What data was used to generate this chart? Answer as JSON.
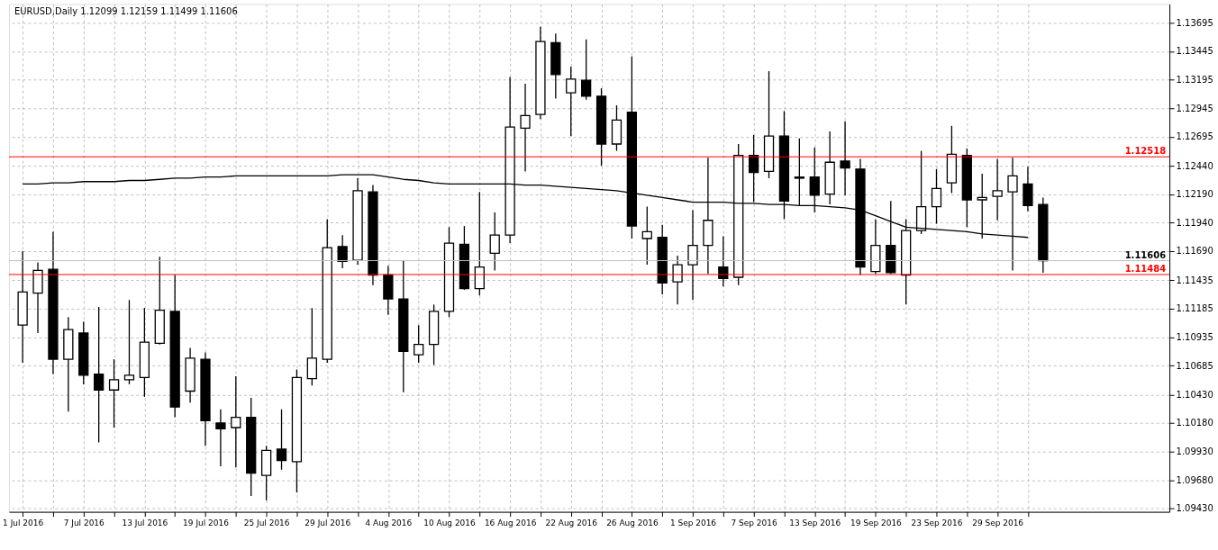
{
  "chart_data": {
    "type": "candlestick",
    "title": "EURUSD,Daily  1.12099 1.12159 1.11499 1.11606",
    "categories": [
      "1 Jul 2016",
      null,
      null,
      null,
      "7 Jul 2016",
      null,
      null,
      null,
      "13 Jul 2016",
      null,
      null,
      null,
      "19 Jul 2016",
      null,
      null,
      null,
      "25 Jul 2016",
      null,
      null,
      null,
      "29 Jul 2016",
      null,
      null,
      null,
      "4 Aug 2016",
      null,
      null,
      null,
      "10 Aug 2016",
      null,
      null,
      null,
      "16 Aug 2016",
      null,
      null,
      null,
      "22 Aug 2016",
      null,
      null,
      null,
      "26 Aug 2016",
      null,
      null,
      null,
      "1 Sep 2016",
      null,
      null,
      null,
      "7 Sep 2016",
      null,
      null,
      null,
      "13 Sep 2016",
      null,
      null,
      null,
      "19 Sep 2016",
      null,
      null,
      null,
      "23 Sep 2016",
      null,
      null,
      null,
      "29 Sep 2016",
      null,
      null,
      null
    ],
    "ohlc": [
      [
        1.1104,
        1.1169,
        1.1071,
        1.1133
      ],
      [
        1.1132,
        1.1159,
        1.1097,
        1.1152
      ],
      [
        1.1153,
        1.1186,
        1.1061,
        1.1074
      ],
      [
        1.1074,
        1.1111,
        1.1028,
        1.11
      ],
      [
        1.1097,
        1.1107,
        1.1052,
        1.106
      ],
      [
        1.1061,
        1.112,
        1.1001,
        1.1047
      ],
      [
        1.1047,
        1.1074,
        1.1014,
        1.1056
      ],
      [
        1.1056,
        1.1126,
        1.1052,
        1.106
      ],
      [
        1.1058,
        1.1119,
        1.1041,
        1.1089
      ],
      [
        1.1088,
        1.1164,
        1.1087,
        1.1117
      ],
      [
        1.1116,
        1.1148,
        1.1023,
        1.1032
      ],
      [
        1.1046,
        1.1084,
        1.1036,
        1.1075
      ],
      [
        1.1074,
        1.108,
        1.0998,
        1.102
      ],
      [
        1.1018,
        1.103,
        1.098,
        1.1013
      ],
      [
        1.1014,
        1.1059,
        1.0979,
        1.1023
      ],
      [
        1.1023,
        1.104,
        1.0954,
        1.0974
      ],
      [
        1.0972,
        1.0998,
        1.095,
        1.0994
      ],
      [
        1.0995,
        1.103,
        1.0977,
        1.0985
      ],
      [
        1.0984,
        1.1065,
        1.0957,
        1.1058
      ],
      [
        1.1057,
        1.1119,
        1.1051,
        1.1075
      ],
      [
        1.1074,
        1.1197,
        1.1071,
        1.1172
      ],
      [
        1.1173,
        1.1183,
        1.1154,
        1.116
      ],
      [
        1.1161,
        1.1233,
        1.1157,
        1.1222
      ],
      [
        1.1221,
        1.1227,
        1.1139,
        1.1148
      ],
      [
        1.1148,
        1.1156,
        1.1113,
        1.1127
      ],
      [
        1.1127,
        1.1161,
        1.1045,
        1.1081
      ],
      [
        1.1078,
        1.1104,
        1.1071,
        1.1087
      ],
      [
        1.1087,
        1.1122,
        1.1069,
        1.1116
      ],
      [
        1.1116,
        1.119,
        1.1111,
        1.1176
      ],
      [
        1.1175,
        1.1191,
        1.1135,
        1.1136
      ],
      [
        1.1136,
        1.1221,
        1.113,
        1.1155
      ],
      [
        1.1167,
        1.1203,
        1.1152,
        1.1183
      ],
      [
        1.1183,
        1.1322,
        1.1176,
        1.1278
      ],
      [
        1.1277,
        1.1316,
        1.1239,
        1.1288
      ],
      [
        1.1289,
        1.1366,
        1.1285,
        1.1353
      ],
      [
        1.1352,
        1.136,
        1.1303,
        1.1324
      ],
      [
        1.1308,
        1.1331,
        1.127,
        1.132
      ],
      [
        1.1319,
        1.1355,
        1.1302,
        1.1305
      ],
      [
        1.1305,
        1.1312,
        1.1244,
        1.1263
      ],
      [
        1.1263,
        1.1297,
        1.1257,
        1.1284
      ],
      [
        1.1291,
        1.134,
        1.118,
        1.1191
      ],
      [
        1.118,
        1.1208,
        1.1157,
        1.1186
      ],
      [
        1.1181,
        1.1192,
        1.1131,
        1.1141
      ],
      [
        1.1142,
        1.1165,
        1.1122,
        1.1157
      ],
      [
        1.1157,
        1.1205,
        1.1126,
        1.1174
      ],
      [
        1.1174,
        1.1251,
        1.1149,
        1.1196
      ],
      [
        1.1155,
        1.1182,
        1.1138,
        1.1145
      ],
      [
        1.1146,
        1.1263,
        1.1139,
        1.1253
      ],
      [
        1.1253,
        1.1271,
        1.1212,
        1.1238
      ],
      [
        1.1239,
        1.1327,
        1.1233,
        1.127
      ],
      [
        1.127,
        1.1292,
        1.1197,
        1.1213
      ],
      [
        1.1233,
        1.1268,
        1.1209,
        1.1234
      ],
      [
        1.1234,
        1.126,
        1.1203,
        1.1218
      ],
      [
        1.1219,
        1.1274,
        1.121,
        1.1247
      ],
      [
        1.1248,
        1.1283,
        1.1218,
        1.1242
      ],
      [
        1.1241,
        1.125,
        1.1148,
        1.1155
      ],
      [
        1.1151,
        1.1197,
        1.1149,
        1.1174
      ],
      [
        1.1174,
        1.1213,
        1.1149,
        1.115
      ],
      [
        1.1148,
        1.1197,
        1.1122,
        1.1187
      ],
      [
        1.1187,
        1.1257,
        1.1184,
        1.1208
      ],
      [
        1.1208,
        1.1241,
        1.1193,
        1.1224
      ],
      [
        1.1229,
        1.1279,
        1.122,
        1.1254
      ],
      [
        1.1253,
        1.1259,
        1.119,
        1.1214
      ],
      [
        1.1214,
        1.1237,
        1.118,
        1.1216
      ],
      [
        1.1217,
        1.125,
        1.1196,
        1.1222
      ],
      [
        1.1221,
        1.1251,
        1.1152,
        1.1235
      ],
      [
        1.1228,
        1.1243,
        1.1204,
        1.1209
      ],
      [
        1.12099,
        1.12159,
        1.11499,
        1.11606
      ]
    ],
    "series": [
      {
        "type": "line",
        "color": "#000000",
        "values": [
          1.1228,
          1.1228,
          1.1229,
          1.1229,
          1.123,
          1.123,
          1.123,
          1.1231,
          1.1231,
          1.1232,
          1.1233,
          1.1233,
          1.1234,
          1.1234,
          1.1235,
          1.1235,
          1.1235,
          1.1235,
          1.1235,
          1.1235,
          1.1235,
          1.1236,
          1.1236,
          1.1236,
          1.1234,
          1.1232,
          1.1231,
          1.1229,
          1.1228,
          1.1228,
          1.1228,
          1.1228,
          1.1228,
          1.1227,
          1.1227,
          1.1226,
          1.1225,
          1.1224,
          1.1223,
          1.1222,
          1.122,
          1.1218,
          1.1216,
          1.1214,
          1.1212,
          1.1212,
          1.1212,
          1.1211,
          1.1211,
          1.121,
          1.121,
          1.1209,
          1.1209,
          1.1208,
          1.1207,
          1.1205,
          1.12,
          1.1195,
          1.119,
          1.1189,
          1.1188,
          1.1187,
          1.1186,
          1.1184,
          1.1183,
          1.1182,
          1.1181,
          null
        ]
      }
    ],
    "ylim": [
      1.094,
      1.1386
    ],
    "yticks": [
      {
        "value": 1.0943,
        "label": "1.09430"
      },
      {
        "value": 1.0968,
        "label": "1.09680"
      },
      {
        "value": 1.0993,
        "label": "1.09930"
      },
      {
        "value": 1.1018,
        "label": "1.10180"
      },
      {
        "value": 1.1043,
        "label": "1.10430"
      },
      {
        "value": 1.10685,
        "label": "1.10685"
      },
      {
        "value": 1.10935,
        "label": "1.10935"
      },
      {
        "value": 1.11185,
        "label": "1.11185"
      },
      {
        "value": 1.11435,
        "label": "1.11435"
      },
      {
        "value": 1.1169,
        "label": "1.11690"
      },
      {
        "value": 1.1194,
        "label": "1.11940"
      },
      {
        "value": 1.1219,
        "label": "1.12190"
      },
      {
        "value": 1.1244,
        "label": "1.12440"
      },
      {
        "value": 1.12695,
        "label": "1.12695"
      },
      {
        "value": 1.12945,
        "label": "1.12945"
      },
      {
        "value": 1.13195,
        "label": "1.13195"
      },
      {
        "value": 1.13445,
        "label": "1.13445"
      },
      {
        "value": 1.13695,
        "label": "1.13695"
      }
    ],
    "ref_lines": [
      {
        "axis": "y",
        "value": 1.12518,
        "label": "1.12518",
        "color": "#ff0000"
      },
      {
        "axis": "y",
        "value": 1.11606,
        "label": "1.11606",
        "color": "#c0c0c0"
      },
      {
        "axis": "y",
        "value": 1.11484,
        "label": "1.11484",
        "color": "#ff0000"
      }
    ],
    "grid": true
  }
}
